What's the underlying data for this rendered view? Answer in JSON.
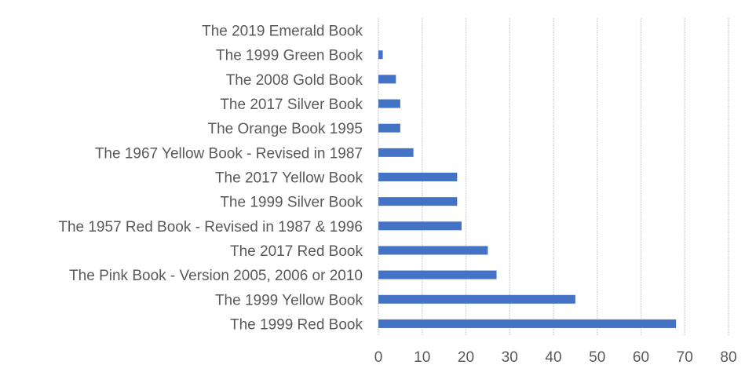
{
  "chart_data": {
    "type": "bar",
    "orientation": "horizontal",
    "title": "",
    "xlabel": "",
    "ylabel": "",
    "categories": [
      "The 2019 Emerald Book",
      "The 1999 Green Book",
      "The 2008 Gold Book",
      "The 2017 Silver Book",
      "The Orange Book 1995",
      "The 1967 Yellow Book - Revised in 1987",
      "The 2017 Yellow Book",
      "The 1999 Silver Book",
      "The 1957 Red Book - Revised in 1987 & 1996",
      "The 2017 Red Book",
      "The Pink Book - Version 2005, 2006 or 2010",
      "The 1999 Yellow Book",
      "The 1999 Red Book"
    ],
    "values": [
      0,
      1,
      4,
      5,
      5,
      8,
      18,
      18,
      19,
      25,
      27,
      45,
      68
    ],
    "xlim": [
      0,
      80
    ],
    "xticks": [
      "0",
      "10",
      "20",
      "30",
      "40",
      "50",
      "60",
      "70",
      "80"
    ],
    "grid": "vertical",
    "legend": "none",
    "bar_color": "#4472C4",
    "grid_color": "#D9D9D9"
  }
}
